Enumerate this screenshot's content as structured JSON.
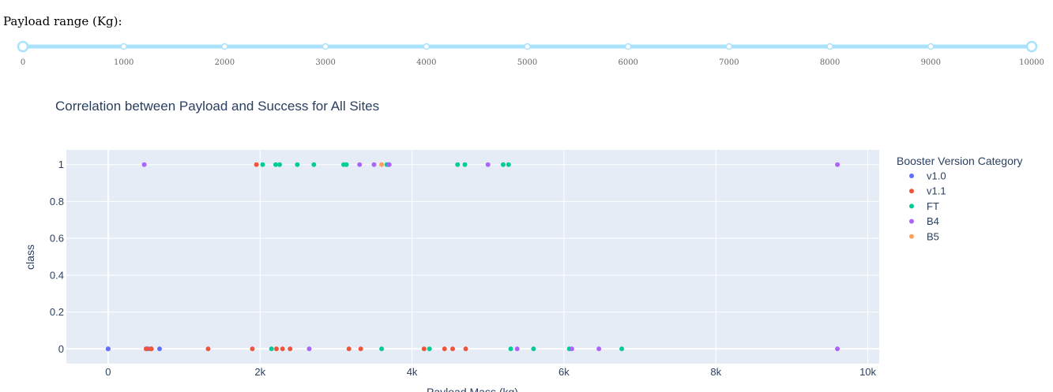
{
  "slider": {
    "label": "Payload range (Kg):",
    "min": 0,
    "max": 10000,
    "value": [
      0,
      10000
    ],
    "marks": [
      "0",
      "1000",
      "2000",
      "3000",
      "4000",
      "5000",
      "6000",
      "7000",
      "8000",
      "9000",
      "10000"
    ],
    "track_color": "#abe2fb",
    "handle_color": "#abe2fb"
  },
  "chart_data": {
    "type": "scatter",
    "title": "Correlation between Payload and Success for All Sites",
    "xlabel": "Payload Mass (kg)",
    "ylabel": "class",
    "xlim": [
      -550,
      10150
    ],
    "ylim": [
      -0.08,
      1.08
    ],
    "x_ticks": [
      0,
      2000,
      4000,
      6000,
      8000,
      10000
    ],
    "x_tick_labels": [
      "0",
      "2k",
      "4k",
      "6k",
      "8k",
      "10k"
    ],
    "y_ticks": [
      0,
      0.2,
      0.4,
      0.6,
      0.8,
      1
    ],
    "y_tick_labels": [
      "0",
      "0.2",
      "0.4",
      "0.6",
      "0.8",
      "1"
    ],
    "legend_title": "Booster Version Category",
    "legend_position": "right",
    "grid": true,
    "plot_bg": "#e5ecf6",
    "series": [
      {
        "name": "v1.0",
        "color": "#636efa",
        "points": [
          [
            0,
            0
          ],
          [
            0,
            0
          ],
          [
            525,
            0
          ],
          [
            500,
            0
          ],
          [
            677,
            0
          ]
        ]
      },
      {
        "name": "v1.1",
        "color": "#ef553b",
        "points": [
          [
            500,
            0
          ],
          [
            560,
            0
          ],
          [
            1316,
            0
          ],
          [
            4535,
            0
          ],
          [
            4428,
            0
          ],
          [
            2216,
            0
          ],
          [
            2395,
            0
          ],
          [
            570,
            0
          ],
          [
            4159,
            0
          ],
          [
            1898,
            0
          ],
          [
            4707,
            0
          ],
          [
            1952,
            1
          ],
          [
            2296,
            0
          ],
          [
            3170,
            0
          ],
          [
            3325,
            0
          ]
        ]
      },
      {
        "name": "FT",
        "color": "#00cc96",
        "points": [
          [
            2034,
            1
          ],
          [
            5271,
            1
          ],
          [
            3136,
            1
          ],
          [
            4696,
            1
          ],
          [
            3100,
            1
          ],
          [
            2257,
            1
          ],
          [
            4600,
            1
          ],
          [
            3600,
            0
          ],
          [
            2150,
            0
          ],
          [
            2205,
            1
          ],
          [
            5200,
            1
          ],
          [
            2490,
            1
          ],
          [
            4230,
            0
          ],
          [
            2708,
            1
          ],
          [
            3669,
            1
          ],
          [
            6070,
            0
          ],
          [
            5300,
            0
          ],
          [
            6761,
            0
          ],
          [
            5600,
            0
          ],
          [
            3696,
            1
          ]
        ]
      },
      {
        "name": "B4",
        "color": "#ab63fa",
        "points": [
          [
            9600,
            1
          ],
          [
            9600,
            0
          ],
          [
            475,
            1
          ],
          [
            3310,
            1
          ],
          [
            3500,
            1
          ],
          [
            5000,
            1
          ],
          [
            3700,
            1
          ],
          [
            2647,
            0
          ],
          [
            5384,
            0
          ],
          [
            6104,
            0
          ],
          [
            6460,
            0
          ]
        ]
      },
      {
        "name": "B5",
        "color": "#ffa15a",
        "points": [
          [
            3600,
            1
          ]
        ]
      }
    ]
  }
}
